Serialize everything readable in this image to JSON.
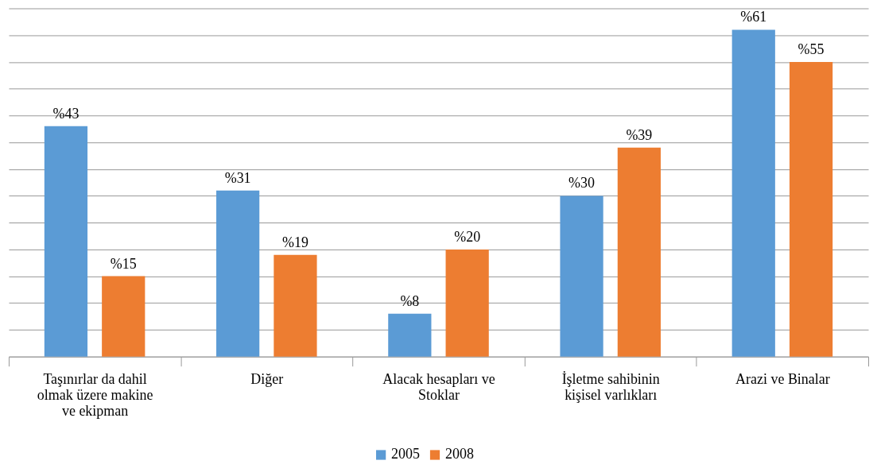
{
  "chart_data": {
    "type": "bar",
    "categories": [
      "Taşınırlar da dahil olmak üzere makine ve ekipman",
      "Diğer",
      "Alacak hesapları ve Stoklar",
      "İşletme sahibinin kişisel varlıkları",
      "Arazi ve Binalar"
    ],
    "series": [
      {
        "name": "2005",
        "color": "#5b9bd5",
        "values": [
          43,
          31,
          8,
          30,
          61
        ],
        "value_labels": [
          "%43",
          "%31",
          "%8",
          "%30",
          "%61"
        ]
      },
      {
        "name": "2008",
        "color": "#ed7d31",
        "values": [
          15,
          19,
          20,
          39,
          55
        ],
        "value_labels": [
          "%15",
          "%19",
          "%20",
          "%39",
          "%55"
        ]
      }
    ],
    "grid": "y",
    "legend": "bottom",
    "tick_labels": "x"
  }
}
